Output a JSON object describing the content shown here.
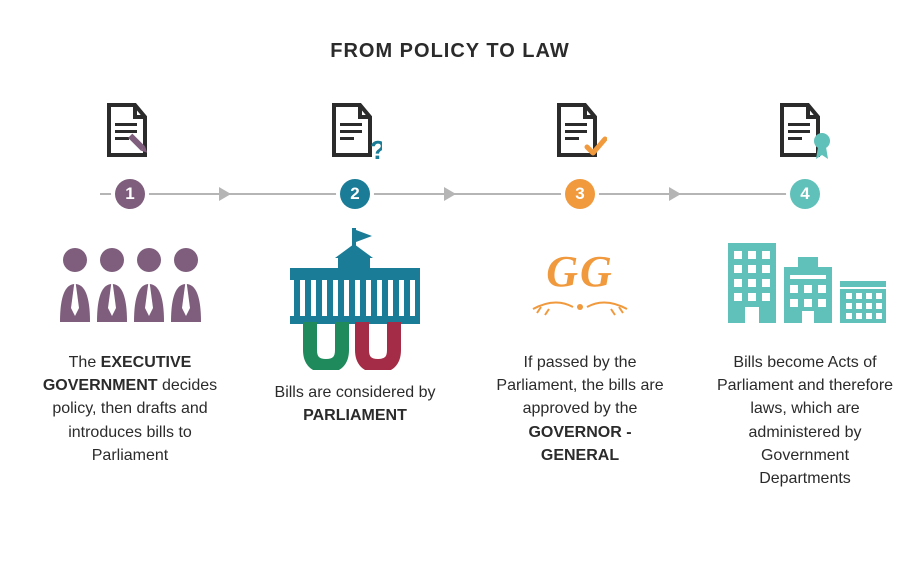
{
  "title": "FROM POLICY TO LAW",
  "colors": {
    "line": "#b5b5b5",
    "docDark": "#2b2b2b",
    "step1": "#7e5e7c",
    "step2": "#1a7c96",
    "step3": "#f0993d",
    "step4": "#5fc1b9",
    "red": "#a42c46",
    "green": "#1f8a5b"
  },
  "arrowPositions": [
    225,
    450,
    675
  ],
  "stepLeft": [
    35,
    260,
    485,
    710
  ],
  "steps": [
    {
      "num": "1",
      "textParts": [
        "The ",
        "EXECUTIVE GOVERNMENT",
        " decides policy, then drafts and introduces bills to Parliament"
      ],
      "descTop": 258
    },
    {
      "num": "2",
      "textParts": [
        "Bills are considered by ",
        "PARLIAMENT",
        ""
      ],
      "descTop": 288
    },
    {
      "num": "3",
      "textParts": [
        "If passed by the Parliament, the bills are approved by the ",
        "GOVERNOR -GENERAL",
        ""
      ],
      "descTop": 258
    },
    {
      "num": "4",
      "textParts": [
        "Bills become Acts of Parliament and therefore laws, which are administered by Government Departments"
      ],
      "descTop": 258
    }
  ]
}
